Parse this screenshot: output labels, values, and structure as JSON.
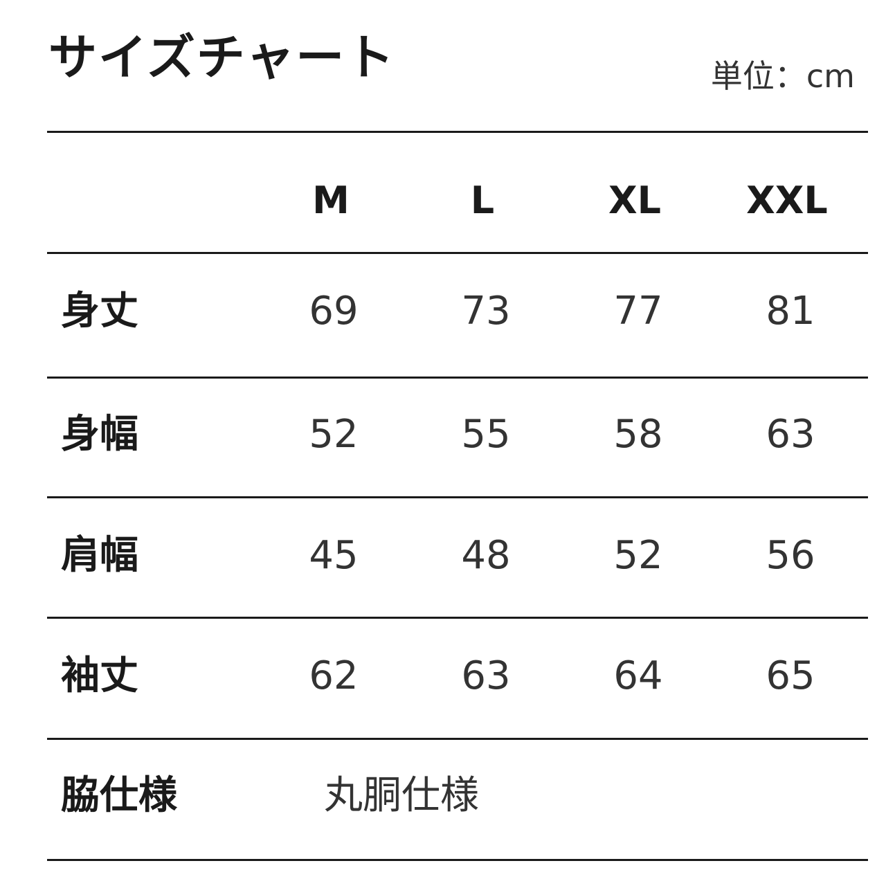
{
  "title": "サイズチャート",
  "unit": "単位：cm",
  "sizes": [
    "M",
    "L",
    "XL",
    "XXL"
  ],
  "rows": [
    {
      "label": "身丈",
      "values": [
        "69",
        "73",
        "77",
        "81"
      ]
    },
    {
      "label": "身幅",
      "values": [
        "52",
        "55",
        "58",
        "63"
      ]
    },
    {
      "label": "肩幅",
      "values": [
        "45",
        "48",
        "52",
        "56"
      ]
    },
    {
      "label": "袖丈",
      "values": [
        "62",
        "63",
        "64",
        "65"
      ]
    }
  ],
  "side": {
    "label": "脇仕様",
    "value": "丸胴仕様"
  }
}
